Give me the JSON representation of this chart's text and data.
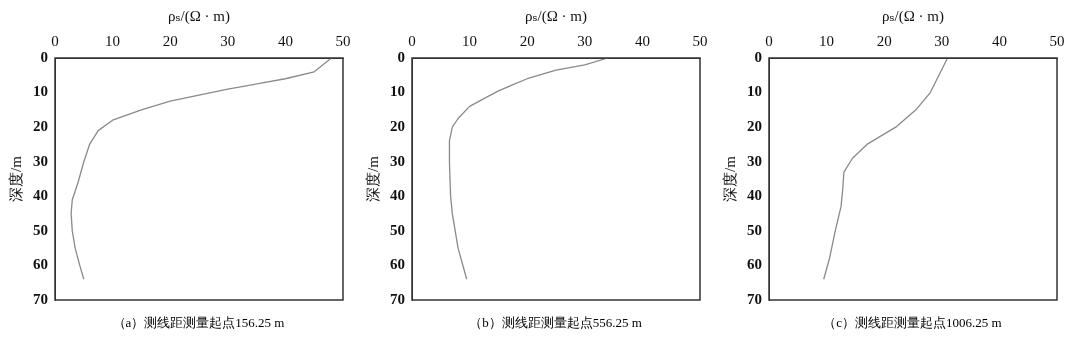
{
  "chart_data": [
    {
      "type": "line",
      "xlabel": "ρₛ/(Ω · m)",
      "ylabel": "深度/m",
      "annotations": [
        "（a）测线距测量起点156.25 m"
      ],
      "xlim": [
        0,
        50
      ],
      "xticks": [
        0,
        10,
        20,
        30,
        40,
        50
      ],
      "ylim": [
        70,
        0
      ],
      "yticks": [
        0,
        10,
        20,
        30,
        40,
        50,
        60,
        70
      ],
      "series": [
        {
          "color": "#8a8a8a",
          "x": [
            48,
            45,
            40,
            30,
            20,
            15,
            10,
            7.5,
            6,
            5,
            4,
            3,
            2.8,
            3,
            3.5,
            4.3,
            5
          ],
          "values": [
            0,
            4,
            6,
            9,
            12.5,
            15,
            18,
            21,
            25,
            30,
            36,
            41,
            45,
            50,
            55,
            60,
            64
          ]
        }
      ]
    },
    {
      "type": "line",
      "xlabel": "ρₛ/(Ω · m)",
      "ylabel": "深度/m",
      "annotations": [
        "（b）测线距测量起点556.25 m"
      ],
      "xlim": [
        0,
        50
      ],
      "xticks": [
        0,
        10,
        20,
        30,
        40,
        50
      ],
      "ylim": [
        70,
        0
      ],
      "yticks": [
        0,
        10,
        20,
        30,
        40,
        50,
        60,
        70
      ],
      "series": [
        {
          "color": "#8a8a8a",
          "x": [
            34,
            30,
            25,
            20,
            15,
            10,
            8,
            7,
            6.5,
            6.5,
            6.7,
            7,
            8,
            9.5
          ],
          "values": [
            0,
            2,
            3.5,
            6,
            9.5,
            14,
            17.5,
            20,
            24,
            30,
            40,
            45,
            55,
            64
          ]
        }
      ]
    },
    {
      "type": "line",
      "xlabel": "ρₛ/(Ω · m)",
      "ylabel": "深度/m",
      "annotations": [
        "（c）测线距测量起点1006.25 m"
      ],
      "xlim": [
        0,
        50
      ],
      "xticks": [
        0,
        10,
        20,
        30,
        40,
        50
      ],
      "ylim": [
        70,
        0
      ],
      "yticks": [
        0,
        10,
        20,
        30,
        40,
        50,
        60,
        70
      ],
      "series": [
        {
          "color": "#8a8a8a",
          "x": [
            31,
            29.5,
            28,
            25.5,
            22,
            17,
            14.5,
            13,
            12.8,
            12.5,
            11.5,
            10.5,
            9.5
          ],
          "values": [
            0,
            5,
            10,
            15,
            20,
            25,
            29,
            33,
            38,
            43,
            50,
            58,
            64
          ]
        }
      ]
    }
  ]
}
